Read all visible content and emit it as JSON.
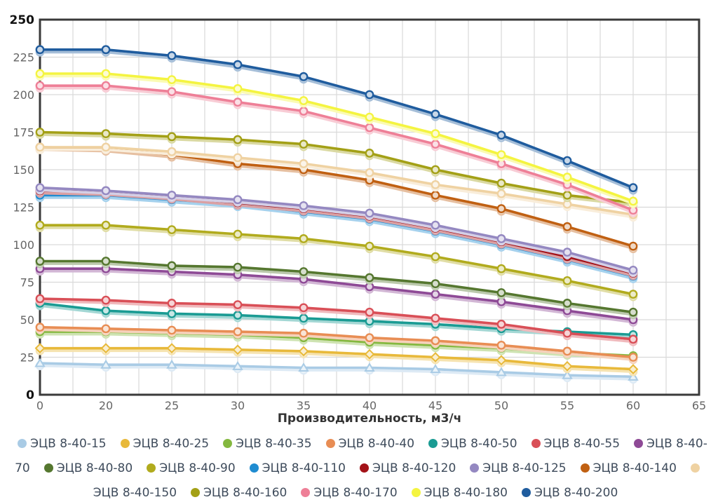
{
  "page": {
    "background": "#ffffff"
  },
  "chart_data": {
    "type": "line",
    "title": "",
    "xlabel": "Производительность, м3/ч",
    "ylabel": "",
    "ylim": [
      0,
      250
    ],
    "y_ticks": [
      0,
      25,
      50,
      75,
      100,
      125,
      150,
      175,
      200,
      225,
      250
    ],
    "x_tick_labels": [
      "0",
      "20",
      "25",
      "30",
      "35",
      "40",
      "45",
      "50",
      "55",
      "60",
      "65"
    ],
    "categories": [
      0,
      20,
      25,
      30,
      35,
      40,
      45,
      50,
      55,
      60
    ],
    "grid": true,
    "legend_position": "bottom",
    "axis_color": "#3a3a3a",
    "grid_color": "#d9d9d9",
    "series": [
      {
        "name": "ЭЦВ 8-40-15",
        "color": "#a9cbe5",
        "marker": "triangle",
        "values": [
          21,
          20,
          20,
          19,
          18,
          18,
          17,
          15,
          13,
          12
        ]
      },
      {
        "name": "ЭЦВ 8-40-25",
        "color": "#e8b93a",
        "marker": "diamond",
        "values": [
          31,
          31,
          31,
          30,
          29,
          27,
          25,
          23,
          19,
          17
        ]
      },
      {
        "name": "ЭЦВ 8-40-35",
        "color": "#84b83f",
        "marker": "circle",
        "values": [
          42,
          42,
          41,
          40,
          38,
          35,
          33,
          31,
          28,
          26
        ]
      },
      {
        "name": "ЭЦВ 8-40-40",
        "color": "#e88d54",
        "marker": "circle",
        "values": [
          45,
          44,
          43,
          42,
          41,
          38,
          36,
          33,
          29,
          25
        ]
      },
      {
        "name": "ЭЦВ 8-40-50",
        "color": "#1a9b93",
        "marker": "circle",
        "values": [
          61,
          56,
          54,
          53,
          51,
          49,
          47,
          44,
          42,
          40
        ]
      },
      {
        "name": "ЭЦВ 8-40-55",
        "color": "#d94f57",
        "marker": "circle",
        "values": [
          64,
          63,
          61,
          60,
          58,
          55,
          51,
          47,
          41,
          37
        ]
      },
      {
        "name": "ЭЦВ 8-40-70",
        "color": "#8e4a96",
        "marker": "circle",
        "values": [
          84,
          84,
          82,
          80,
          77,
          72,
          67,
          62,
          56,
          50
        ]
      },
      {
        "name": "ЭЦВ 8-40-80",
        "color": "#55772f",
        "marker": "circle",
        "values": [
          89,
          89,
          86,
          85,
          82,
          78,
          74,
          68,
          61,
          55
        ]
      },
      {
        "name": "ЭЦВ 8-40-90",
        "color": "#b1ab1d",
        "marker": "circle",
        "values": [
          113,
          113,
          110,
          107,
          104,
          99,
          92,
          84,
          76,
          67
        ]
      },
      {
        "name": "ЭЦВ 8-40-110",
        "color": "#1f8cd1",
        "marker": "circle",
        "values": [
          133,
          133,
          130,
          127,
          122,
          117,
          109,
          100,
          90,
          79
        ]
      },
      {
        "name": "ЭЦВ 8-40-120",
        "color": "#a31218",
        "marker": "circle",
        "values": [
          136,
          135,
          132,
          128,
          124,
          119,
          111,
          102,
          92,
          81
        ]
      },
      {
        "name": "ЭЦВ 8-40-125",
        "color": "#9488c1",
        "marker": "circle",
        "values": [
          138,
          136,
          133,
          130,
          126,
          121,
          113,
          104,
          95,
          83
        ]
      },
      {
        "name": "ЭЦВ 8-40-140",
        "color": "#c06012",
        "marker": "circle",
        "values": [
          165,
          164,
          160,
          154,
          150,
          143,
          133,
          124,
          112,
          99
        ]
      },
      {
        "name": "ЭЦВ 8-40-150",
        "color": "#efd2a2",
        "marker": "circle",
        "values": [
          165,
          165,
          162,
          158,
          154,
          148,
          140,
          134,
          127,
          120
        ]
      },
      {
        "name": "ЭЦВ 8-40-160",
        "color": "#a3a016",
        "marker": "circle",
        "values": [
          175,
          174,
          172,
          170,
          167,
          161,
          150,
          141,
          133,
          128
        ]
      },
      {
        "name": "ЭЦВ 8-40-170",
        "color": "#ee7f97",
        "marker": "circle",
        "values": [
          206,
          206,
          202,
          195,
          189,
          178,
          167,
          154,
          140,
          123
        ]
      },
      {
        "name": "ЭЦВ 8-40-180",
        "color": "#f4f440",
        "marker": "circle",
        "values": [
          214,
          214,
          210,
          204,
          196,
          185,
          174,
          160,
          145,
          129
        ]
      },
      {
        "name": "ЭЦВ 8-40-200",
        "color": "#1f5c9e",
        "marker": "circle",
        "values": [
          230,
          230,
          226,
          220,
          212,
          200,
          187,
          173,
          156,
          138
        ]
      }
    ]
  }
}
